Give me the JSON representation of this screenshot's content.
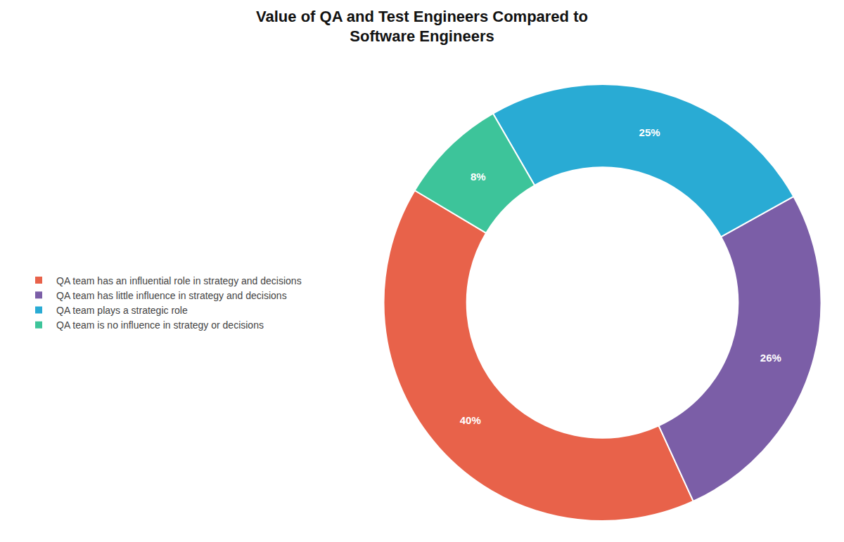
{
  "chart_data": {
    "type": "pie",
    "title": "Value of QA and Test Engineers Compared to\nSoftware Engineers",
    "categories": [
      "QA team has an influential role in strategy and decisions",
      "QA team has little influence in strategy and decisions",
      "QA team plays a strategic role",
      "QA team is no influence in strategy or decisions"
    ],
    "values": [
      40,
      26,
      25,
      8
    ],
    "value_labels": [
      "40%",
      "26%",
      "25%",
      "8%"
    ],
    "colors": [
      "#E8624A",
      "#7B5EA7",
      "#29ABD4",
      "#3DC49A"
    ],
    "data_labels": true,
    "legend": "left"
  }
}
